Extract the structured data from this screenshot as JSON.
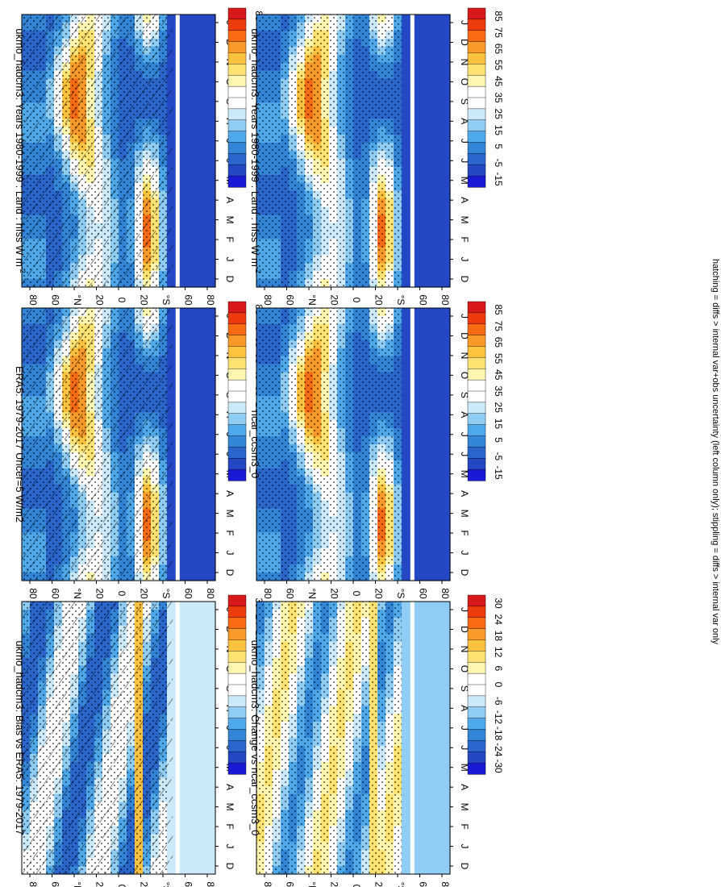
{
  "footnote": "hatching = diffs > internal var+obs uncertainty (left column only); stippling = diffs > internal var only",
  "chart_data": [
    {
      "id": "p00",
      "type": "heatmap",
      "title": "ukmo_hadcm3: Years 1980-1999 : Land : hfss W m",
      "title_superscript": "-2",
      "x_ticks": [
        "D",
        "J",
        "F",
        "M",
        "A",
        "M",
        "J",
        "J",
        "A",
        "S",
        "O",
        "N",
        "D",
        "J"
      ],
      "y_ticks": [
        "80",
        "60",
        "°N",
        "20",
        "0",
        "20",
        "°S",
        "60",
        "80"
      ],
      "colorbar_ticks": [
        "85",
        "75",
        "65",
        "55",
        "45",
        "35",
        "25",
        "15",
        "5",
        "-15"
      ],
      "colorbar_colors": [
        "#d7191c",
        "#ee3b0d",
        "#f86b13",
        "#fb9a29",
        "#fdc23e",
        "#fee372",
        "#fff6b0",
        "#ffffff",
        "#ffffff",
        "#cbe9f9",
        "#8fcdf5",
        "#4fa8ea",
        "#3385d8",
        "#2a66cc",
        "#2447c4",
        "#1a1ad6"
      ],
      "range": [
        -15,
        85
      ],
      "hatching": true,
      "stippling": true
    },
    {
      "id": "p01",
      "type": "heatmap",
      "title": "ukmo_hadcm3: Years 1980-1999 : Land : hfss W m",
      "title_superscript": "-2",
      "x_ticks": [
        "D",
        "J",
        "F",
        "M",
        "A",
        "M",
        "J",
        "J",
        "A",
        "S",
        "O",
        "N",
        "D",
        "J"
      ],
      "y_ticks": [
        "80",
        "60",
        "°N",
        "20",
        "0",
        "20",
        "°S",
        "60",
        "80"
      ],
      "colorbar_ticks": [
        "85",
        "75",
        "65",
        "55",
        "45",
        "35",
        "25",
        "15",
        "5",
        "-5",
        "-15"
      ],
      "colorbar_colors": [
        "#d7191c",
        "#ee3b0d",
        "#f86b13",
        "#fb9a29",
        "#fdc23e",
        "#fee372",
        "#fff6b0",
        "#ffffff",
        "#ffffff",
        "#cbe9f9",
        "#8fcdf5",
        "#4fa8ea",
        "#3385d8",
        "#2a66cc",
        "#2447c4",
        "#1a1ad6"
      ],
      "range": [
        -15,
        85
      ],
      "hatching": false,
      "stippling": true
    },
    {
      "id": "p10",
      "type": "heatmap",
      "title": "ERA5: 1979-2017 Uncer=5 W/m2",
      "x_ticks": [
        "D",
        "J",
        "F",
        "M",
        "A",
        "M",
        "J",
        "J",
        "A",
        "S",
        "O",
        "N",
        "D",
        "J"
      ],
      "y_ticks": [
        "80",
        "60",
        "°N",
        "20",
        "0",
        "20",
        "°S",
        "60",
        "80"
      ],
      "colorbar_ticks": [
        "85",
        "75",
        "65",
        "55",
        "45",
        "35",
        "25",
        "15",
        "5",
        "-5",
        "-15"
      ],
      "colorbar_colors": [
        "#d7191c",
        "#ee3b0d",
        "#f86b13",
        "#fb9a29",
        "#fdc23e",
        "#fee372",
        "#fff6b0",
        "#ffffff",
        "#ffffff",
        "#cbe9f9",
        "#8fcdf5",
        "#4fa8ea",
        "#3385d8",
        "#2a66cc",
        "#2447c4",
        "#1a1ad6"
      ],
      "range": [
        -15,
        85
      ],
      "hatching": true,
      "stippling": true
    },
    {
      "id": "p11",
      "type": "heatmap",
      "title": "ncar_ccsm3_0",
      "x_ticks": [
        "D",
        "J",
        "F",
        "M",
        "A",
        "M",
        "J",
        "J",
        "A",
        "S",
        "O",
        "N",
        "D",
        "J"
      ],
      "y_ticks": [
        "80",
        "60",
        "°N",
        "20",
        "0",
        "20",
        "°S",
        "60",
        "80"
      ],
      "colorbar_ticks": [
        "85",
        "75",
        "65",
        "55",
        "45",
        "35",
        "25",
        "15",
        "5",
        "-5",
        "-15"
      ],
      "colorbar_colors": [
        "#d7191c",
        "#ee3b0d",
        "#f86b13",
        "#fb9a29",
        "#fdc23e",
        "#fee372",
        "#fff6b0",
        "#ffffff",
        "#ffffff",
        "#cbe9f9",
        "#8fcdf5",
        "#4fa8ea",
        "#3385d8",
        "#2a66cc",
        "#2447c4",
        "#1a1ad6"
      ],
      "range": [
        -15,
        85
      ],
      "hatching": false,
      "stippling": true
    },
    {
      "id": "p20",
      "type": "heatmap",
      "title": "ukmo_hadcm3: Bias vs ERA5: 1979-2017",
      "x_ticks": [
        "D",
        "J",
        "F",
        "M",
        "A",
        "M",
        "J",
        "J",
        "A",
        "S",
        "O",
        "N",
        "D",
        "J"
      ],
      "y_ticks": [
        "80",
        "60",
        "°N",
        "20",
        "0",
        "20",
        "°S",
        "60",
        "80"
      ],
      "colorbar_ticks": [
        "30",
        "24",
        "18",
        "12",
        "6",
        "0",
        "-6",
        "-12",
        "-18",
        "-24",
        "-30"
      ],
      "colorbar_colors": [
        "#d7191c",
        "#ee3b0d",
        "#f86b13",
        "#fb9a29",
        "#fdc23e",
        "#fee372",
        "#fff6b0",
        "#ffffff",
        "#ffffff",
        "#cbe9f9",
        "#8fcdf5",
        "#4fa8ea",
        "#3385d8",
        "#2a66cc",
        "#2447c4",
        "#1a1ad6"
      ],
      "range": [
        -30,
        30
      ],
      "hatching": true,
      "stippling": true
    },
    {
      "id": "p21",
      "type": "heatmap",
      "title": "ukmo_hadcm3: Change vs ncar_ccsm3_0",
      "x_ticks": [
        "D",
        "J",
        "F",
        "M",
        "A",
        "M",
        "J",
        "J",
        "A",
        "S",
        "O",
        "N",
        "D",
        "J"
      ],
      "y_ticks": [
        "80",
        "60",
        "°N",
        "20",
        "0",
        "20",
        "°S",
        "60",
        "80"
      ],
      "colorbar_ticks": [
        "30",
        "24",
        "18",
        "12",
        "6",
        "0",
        "-6",
        "-12",
        "-18",
        "-24",
        "-30"
      ],
      "colorbar_colors": [
        "#d7191c",
        "#ee3b0d",
        "#f86b13",
        "#fb9a29",
        "#fdc23e",
        "#fee372",
        "#fff6b0",
        "#ffffff",
        "#ffffff",
        "#cbe9f9",
        "#8fcdf5",
        "#4fa8ea",
        "#3385d8",
        "#2a66cc",
        "#2447c4",
        "#1a1ad6"
      ],
      "range": [
        -30,
        30
      ],
      "hatching": false,
      "stippling": true
    }
  ]
}
